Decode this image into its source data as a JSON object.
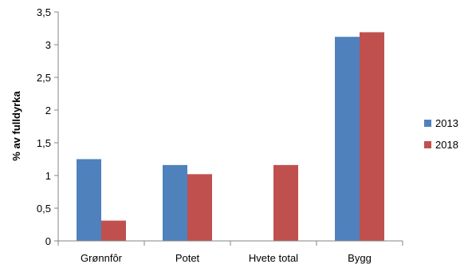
{
  "chart_data": {
    "type": "bar",
    "title": "",
    "xlabel": "",
    "ylabel": "% av fulldyrka",
    "categories": [
      "Grønnfôr",
      "Potet",
      "Hvete total",
      "Bygg"
    ],
    "series": [
      {
        "name": "2013",
        "color": "#4f81bd",
        "values": [
          1.25,
          1.16,
          0,
          3.12
        ]
      },
      {
        "name": "2018",
        "color": "#c0504d",
        "values": [
          0.31,
          1.02,
          1.16,
          3.19
        ]
      }
    ],
    "ylim": [
      0,
      3.5
    ],
    "yticks": [
      {
        "value": 0,
        "label": "0"
      },
      {
        "value": 0.5,
        "label": "0,5"
      },
      {
        "value": 1,
        "label": "1"
      },
      {
        "value": 1.5,
        "label": "1,5"
      },
      {
        "value": 2,
        "label": "2"
      },
      {
        "value": 2.5,
        "label": "2,5"
      },
      {
        "value": 3,
        "label": "3"
      },
      {
        "value": 3.5,
        "label": "3,5"
      }
    ],
    "grid": false,
    "legend_position": "right"
  }
}
